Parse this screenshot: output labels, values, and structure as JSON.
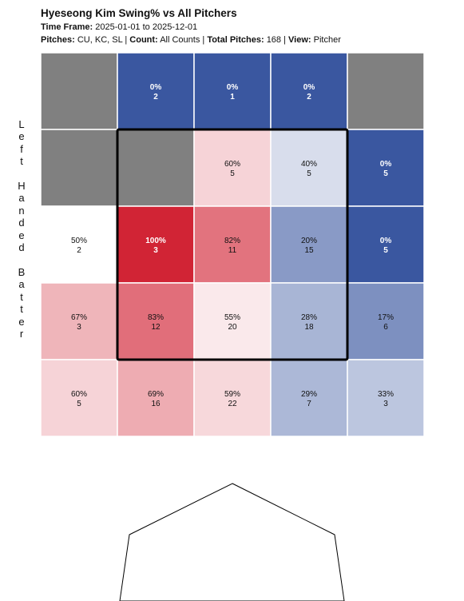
{
  "title": "Hyeseong Kim Swing% vs All Pitchers",
  "time_frame_label": "Time Frame:",
  "time_frame": "2025-01-01 to 2025-12-01",
  "pitches_label": "Pitches:",
  "pitches": "CU, KC, SL",
  "count_label": "Count:",
  "count": "All Counts",
  "total_label": "Total Pitches:",
  "total": "168",
  "view_label": "View:",
  "view": "Pitcher",
  "side_label": "L\ne\nf\nt\n\nH\na\nn\nd\ne\nd\n\nB\na\nt\nt\ne\nr",
  "chart_data": {
    "type": "heatmap",
    "rows": 5,
    "cols": 5,
    "strike_zone": {
      "row_start": 1,
      "row_end": 3,
      "col_start": 1,
      "col_end": 3
    },
    "cells": [
      [
        {
          "pct": null,
          "n": null
        },
        {
          "pct": "0%",
          "n": "2"
        },
        {
          "pct": "0%",
          "n": "1"
        },
        {
          "pct": "0%",
          "n": "2"
        },
        {
          "pct": null,
          "n": null
        }
      ],
      [
        {
          "pct": null,
          "n": null
        },
        {
          "pct": null,
          "n": null
        },
        {
          "pct": "60%",
          "n": "5"
        },
        {
          "pct": "40%",
          "n": "5"
        },
        {
          "pct": "0%",
          "n": "5"
        }
      ],
      [
        {
          "pct": "50%",
          "n": "2"
        },
        {
          "pct": "100%",
          "n": "3"
        },
        {
          "pct": "82%",
          "n": "11"
        },
        {
          "pct": "20%",
          "n": "15"
        },
        {
          "pct": "0%",
          "n": "5"
        }
      ],
      [
        {
          "pct": "67%",
          "n": "3"
        },
        {
          "pct": "83%",
          "n": "12"
        },
        {
          "pct": "55%",
          "n": "20"
        },
        {
          "pct": "28%",
          "n": "18"
        },
        {
          "pct": "17%",
          "n": "6"
        }
      ],
      [
        {
          "pct": "60%",
          "n": "5"
        },
        {
          "pct": "69%",
          "n": "16"
        },
        {
          "pct": "59%",
          "n": "22"
        },
        {
          "pct": "29%",
          "n": "7"
        },
        {
          "pct": "33%",
          "n": "3"
        }
      ]
    ],
    "colors": {
      "no_data": "#808080",
      "low": "#3a57a0",
      "mid": "#ffffff",
      "high": "#d12435",
      "grid_line": "#ffffff",
      "zone_border": "#000000"
    }
  }
}
